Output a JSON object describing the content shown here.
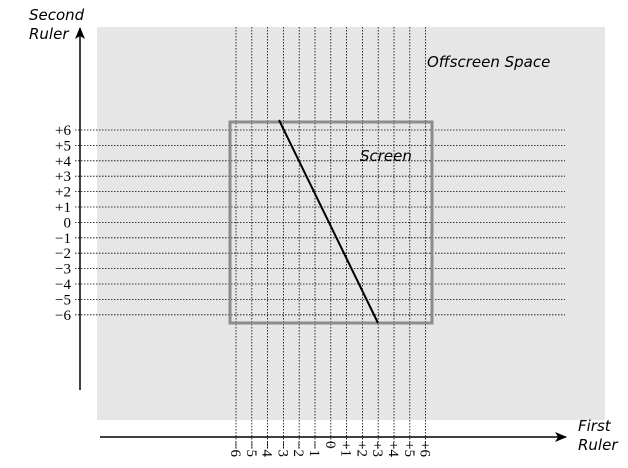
{
  "axes": {
    "second": {
      "label": "Second\nRuler",
      "ticks": [
        "+6",
        "+5",
        "+4",
        "+3",
        "+2",
        "+1",
        "0",
        "−1",
        "−2",
        "−3",
        "−4",
        "−5",
        "−6"
      ]
    },
    "first": {
      "label": "First\nRuler",
      "ticks": [
        "−6",
        "−5",
        "−4",
        "−3",
        "−2",
        "−1",
        "0",
        "+1",
        "+2",
        "+3",
        "+4",
        "+5",
        "+6"
      ]
    }
  },
  "regions": {
    "offscreen": "Offscreen Space",
    "screen": "Screen"
  }
}
